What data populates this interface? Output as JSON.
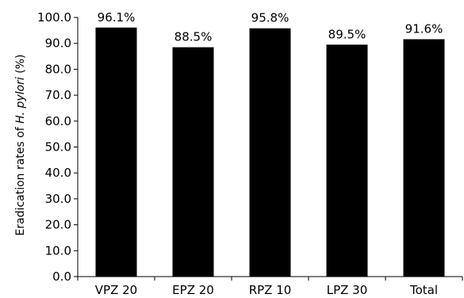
{
  "chart_data": {
    "type": "bar",
    "title": "",
    "xlabel": "",
    "ylabel_prefix": "Eradication rates of ",
    "ylabel_italic": "H. pylori",
    "ylabel_suffix": " (%)",
    "categories": [
      "VPZ 20",
      "EPZ 20",
      "RPZ 10",
      "LPZ 30",
      "Total"
    ],
    "values": [
      96.1,
      88.5,
      95.8,
      89.5,
      91.6
    ],
    "data_labels": [
      "96.1%",
      "88.5%",
      "95.8%",
      "89.5%",
      "91.6%"
    ],
    "ylim": [
      0,
      100
    ],
    "yticks": [
      "0.0",
      "10.0",
      "20.0",
      "30.0",
      "40.0",
      "50.0",
      "60.0",
      "70.0",
      "80.0",
      "90.0",
      "100.0"
    ],
    "grid": false,
    "colors": {
      "bar": "#000000",
      "axis": "#000000",
      "background": "#ffffff"
    }
  }
}
